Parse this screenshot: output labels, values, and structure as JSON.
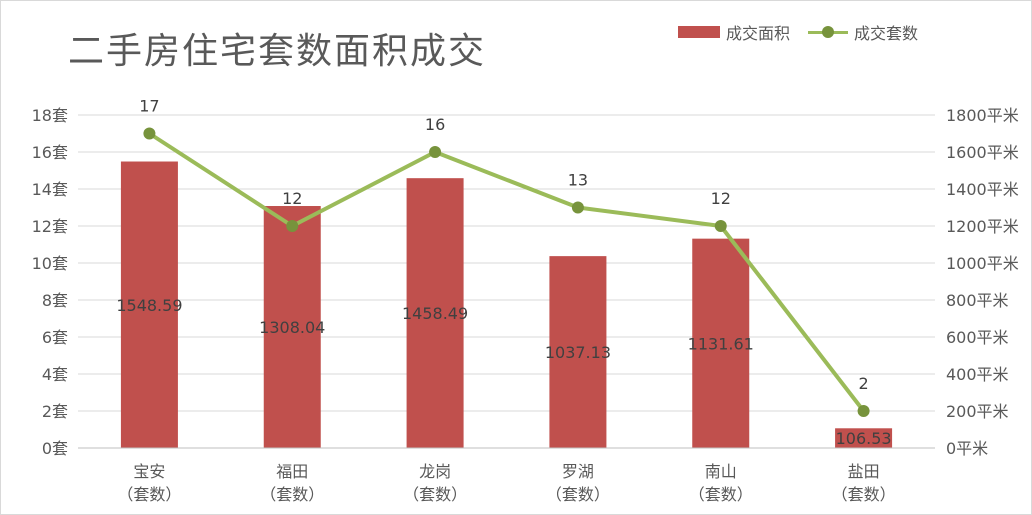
{
  "chart_data": {
    "type": "bar",
    "title": "二手房住宅套数面积成交",
    "categories": [
      "宝安\n（套数）",
      "福田\n（套数）",
      "龙岗\n（套数）",
      "罗湖\n（套数）",
      "南山\n（套数）",
      "盐田\n（套数）"
    ],
    "series": [
      {
        "name": "成交面积",
        "type": "bar",
        "axis": "right",
        "values": [
          1548.59,
          1308.04,
          1458.49,
          1037.13,
          1131.61,
          106.53
        ],
        "color": "#c0504d"
      },
      {
        "name": "成交套数",
        "type": "line",
        "axis": "left",
        "values": [
          17,
          12,
          16,
          13,
          12,
          2
        ],
        "color": "#9bbb59",
        "marker_color": "#77933c"
      }
    ],
    "y_left": {
      "ylim": [
        0,
        18
      ],
      "ticks": [
        "0套",
        "2套",
        "4套",
        "6套",
        "8套",
        "10套",
        "12套",
        "14套",
        "16套",
        "18套"
      ]
    },
    "y_right": {
      "ylim": [
        0,
        1800
      ],
      "ticks": [
        "0平米",
        "200平米",
        "400平米",
        "600平米",
        "800平米",
        "1000平米",
        "1200平米",
        "1400平米",
        "1600平米",
        "1800平米"
      ]
    },
    "grid": true,
    "legend": "top-right"
  }
}
